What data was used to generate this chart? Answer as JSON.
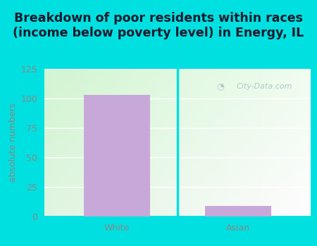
{
  "categories": [
    "White",
    "Asian"
  ],
  "values": [
    103,
    9
  ],
  "bar_color": "#c8a8d8",
  "title_line1": "Breakdown of poor residents within races",
  "title_line2": "(income below poverty level) in Energy, IL",
  "ylabel": "absolute numbers",
  "ylim": [
    0,
    125
  ],
  "yticks": [
    0,
    25,
    50,
    75,
    100,
    125
  ],
  "fig_bg_color": "#00e0e0",
  "plot_bg_topleft": "#daf0d8",
  "plot_bg_topright": "#e8f8e0",
  "plot_bg_bottomleft": "#f0fde8",
  "plot_bg_bottomright": "#ffffff",
  "title_fontsize": 12.5,
  "ylabel_fontsize": 9,
  "tick_fontsize": 9,
  "tick_color": "#888888",
  "watermark_text": "City-Data.com",
  "watermark_color": "#b0c8c4",
  "bar_width": 0.55,
  "grid_color": "#ffffff",
  "divider_color": "#00e0e0"
}
